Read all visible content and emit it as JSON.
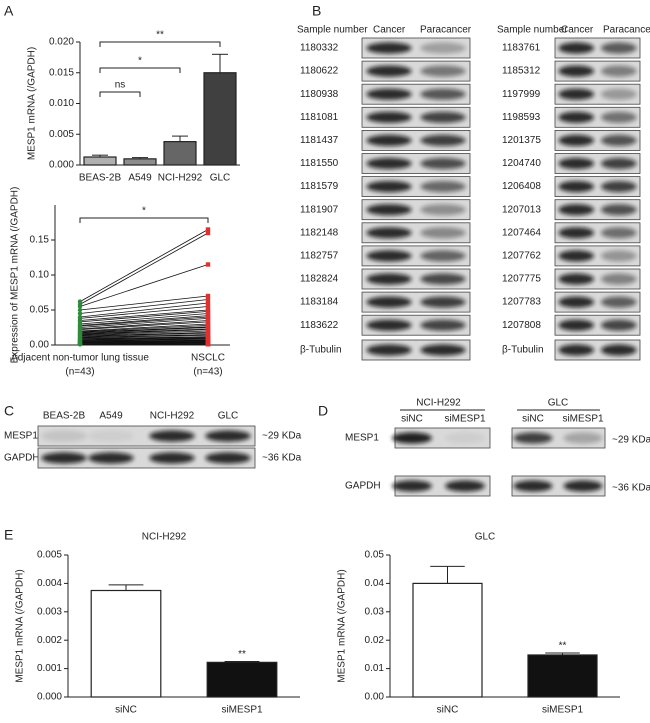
{
  "panel_labels": [
    "A",
    "B",
    "C",
    "D",
    "E"
  ],
  "chart_data": [
    {
      "type": "bar",
      "ylabel": "MESP1 mRNA (/GAPDH)",
      "categories": [
        "BEAS-2B",
        "A549",
        "NCI-H292",
        "GLC"
      ],
      "values": [
        0.0013,
        0.001,
        0.0038,
        0.015
      ],
      "errors": [
        0.0003,
        0.0002,
        0.0009,
        0.003
      ],
      "colors": [
        "#b0b0b0",
        "#8c8c8c",
        "#666666",
        "#404040"
      ],
      "ylim": [
        0,
        0.02
      ],
      "yticks": [
        {
          "value": 0,
          "label": "0.000"
        },
        {
          "value": 0.005,
          "label": "0.005"
        },
        {
          "value": 0.01,
          "label": "0.010"
        },
        {
          "value": 0.015,
          "label": "0.015"
        },
        {
          "value": 0.02,
          "label": "0.020"
        }
      ],
      "brackets": [
        {
          "from": 0,
          "to": 1,
          "label": "ns"
        },
        {
          "from": 0,
          "to": 2,
          "label": "*"
        },
        {
          "from": 0,
          "to": 3,
          "label": "**"
        }
      ]
    },
    {
      "type": "paired",
      "ylabel": "Expression of MESP1 mRNA (/GAPDH)",
      "categories": [
        "Adjacent non-tumor lung tissue",
        "NSCLC"
      ],
      "category_notes": [
        "(n=43)",
        "(n=43)"
      ],
      "groups": [
        {
          "color": "#2e8b3a",
          "values": [
            0.062,
            0.058,
            0.055,
            0.05,
            0.045,
            0.04,
            0.038,
            0.035,
            0.033,
            0.03,
            0.028,
            0.027,
            0.025,
            0.023,
            0.022,
            0.02,
            0.019,
            0.018,
            0.017,
            0.016,
            0.015,
            0.014,
            0.013,
            0.012,
            0.011,
            0.01,
            0.009,
            0.008,
            0.008,
            0.007,
            0.006,
            0.006,
            0.005,
            0.005,
            0.004,
            0.004,
            0.003,
            0.003,
            0.002,
            0.002,
            0.001,
            0.001,
            0.001
          ]
        },
        {
          "color": "#e03030",
          "values": [
            0.165,
            0.16,
            0.115,
            0.07,
            0.065,
            0.06,
            0.055,
            0.05,
            0.048,
            0.045,
            0.042,
            0.04,
            0.038,
            0.035,
            0.033,
            0.03,
            0.028,
            0.026,
            0.025,
            0.023,
            0.022,
            0.02,
            0.018,
            0.017,
            0.015,
            0.014,
            0.012,
            0.011,
            0.01,
            0.009,
            0.008,
            0.007,
            0.006,
            0.005,
            0.005,
            0.004,
            0.004,
            0.003,
            0.003,
            0.002,
            0.002,
            0.001,
            0.001
          ]
        }
      ],
      "ylim": [
        0,
        0.2
      ],
      "yticks": [
        {
          "value": 0,
          "label": "0.00"
        },
        {
          "value": 0.05,
          "label": "0.05"
        },
        {
          "value": 0.1,
          "label": "0.10"
        },
        {
          "value": 0.15,
          "label": "0.15"
        }
      ],
      "brackets": [
        {
          "from": 0,
          "to": 1,
          "label": "*"
        }
      ]
    },
    {
      "type": "bar",
      "title": "NCI-H292",
      "ylabel": "MESP1 mRNA (/GAPDH)",
      "categories": [
        "siNC",
        "siMESP1"
      ],
      "values": [
        0.00375,
        0.00122
      ],
      "errors": [
        0.0002,
        3e-05
      ],
      "colors": [
        "#ffffff",
        "#111111"
      ],
      "significance": [
        null,
        "**"
      ],
      "ylim": [
        0,
        0.005
      ],
      "yticks": [
        {
          "value": 0,
          "label": "0.000"
        },
        {
          "value": 0.001,
          "label": "0.001"
        },
        {
          "value": 0.002,
          "label": "0.002"
        },
        {
          "value": 0.003,
          "label": "0.003"
        },
        {
          "value": 0.004,
          "label": "0.004"
        },
        {
          "value": 0.005,
          "label": "0.005"
        }
      ]
    },
    {
      "type": "bar",
      "title": "GLC",
      "ylabel": "MESP1 mRNA (/GAPDH)",
      "categories": [
        "siNC",
        "siMESP1"
      ],
      "values": [
        0.04,
        0.0148
      ],
      "errors": [
        0.006,
        0.0007
      ],
      "colors": [
        "#ffffff",
        "#111111"
      ],
      "significance": [
        null,
        "**"
      ],
      "ylim": [
        0,
        0.05
      ],
      "yticks": [
        {
          "value": 0,
          "label": "0.00"
        },
        {
          "value": 0.01,
          "label": "0.01"
        },
        {
          "value": 0.02,
          "label": "0.02"
        },
        {
          "value": 0.03,
          "label": "0.03"
        },
        {
          "value": 0.04,
          "label": "0.04"
        },
        {
          "value": 0.05,
          "label": "0.05"
        }
      ]
    }
  ],
  "blot_table": {
    "headers": [
      "Sample number",
      "Cancer",
      "Paracancer"
    ],
    "left": [
      "1180332",
      "1180622",
      "1180938",
      "1181081",
      "1181437",
      "1181550",
      "1181579",
      "1181907",
      "1182148",
      "1182757",
      "1182824",
      "1183184",
      "1183622",
      "β-Tubulin"
    ],
    "right": [
      "1183761",
      "1185312",
      "1197999",
      "1198593",
      "1201375",
      "1204740",
      "1206408",
      "1207013",
      "1207464",
      "1207762",
      "1207775",
      "1207783",
      "1207808",
      "β-Tubulin"
    ]
  },
  "blot_c": {
    "lanes": [
      "BEAS-2B",
      "A549",
      "NCI-H292",
      "GLC"
    ],
    "rows": [
      "MESP1",
      "GAPDH"
    ],
    "sizes": [
      "~29 KDa",
      "~36 KDa"
    ]
  },
  "blot_d": {
    "groups": [
      {
        "name": "NCI-H292",
        "lanes": [
          "siNC",
          "siMESP1"
        ]
      },
      {
        "name": "GLC",
        "lanes": [
          "siNC",
          "siMESP1"
        ]
      }
    ],
    "rows": [
      "MESP1",
      "GAPDH"
    ],
    "sizes": [
      "~29 KDa",
      "~36 KDa"
    ]
  }
}
